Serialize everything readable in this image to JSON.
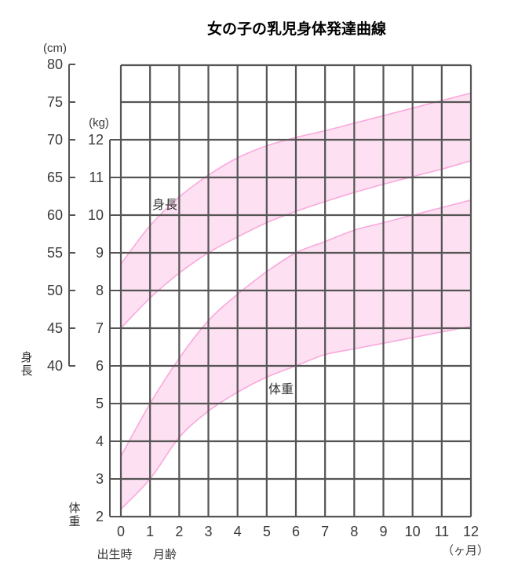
{
  "chart_data": {
    "type": "area",
    "title": "女の子の乳児身体発達曲線",
    "x": [
      0,
      1,
      2,
      3,
      4,
      5,
      6,
      7,
      8,
      9,
      10,
      11,
      12
    ],
    "x_tick_labels": [
      "0",
      "1",
      "2",
      "3",
      "4",
      "5",
      "6",
      "7",
      "8",
      "9",
      "10",
      "11",
      "12"
    ],
    "x_unit": "（ヶ月）",
    "x_sublabels": [
      "出生時",
      "月齢"
    ],
    "xlim": [
      0,
      12
    ],
    "height_axis": {
      "unit": "(cm)",
      "label": "身長",
      "ticks": [
        80,
        75,
        70,
        65,
        60,
        55,
        50,
        45,
        40
      ],
      "ylim": [
        40,
        80
      ]
    },
    "weight_axis": {
      "unit": "(kg)",
      "label": "体重",
      "ticks": [
        12,
        11,
        10,
        9,
        8,
        7,
        6,
        5,
        4,
        3,
        2
      ],
      "ylim": [
        2,
        12
      ]
    },
    "grid": true,
    "series": [
      {
        "name": "身長",
        "axis": "height",
        "upper": [
          53.5,
          58.6,
          62.4,
          65.3,
          67.6,
          69.2,
          70.3,
          71.2,
          72.2,
          73.2,
          74.2,
          75.2,
          76.2
        ],
        "lower": [
          45.0,
          49.0,
          52.3,
          55.0,
          57.1,
          59.0,
          60.5,
          61.8,
          63.0,
          64.1,
          65.1,
          66.1,
          67.2
        ]
      },
      {
        "name": "体重",
        "axis": "weight",
        "upper": [
          3.6,
          5.0,
          6.2,
          7.2,
          7.9,
          8.5,
          9.0,
          9.3,
          9.6,
          9.8,
          10.0,
          10.2,
          10.4
        ],
        "lower": [
          2.2,
          3.0,
          4.1,
          4.8,
          5.3,
          5.7,
          6.0,
          6.3,
          6.45,
          6.6,
          6.75,
          6.9,
          7.05
        ]
      }
    ],
    "colors": {
      "band_fill": "#fde0f1",
      "band_line": "#f9a9dc",
      "grid": "#555555",
      "title": "#f59ad3",
      "text": "#3a3a3a"
    }
  }
}
